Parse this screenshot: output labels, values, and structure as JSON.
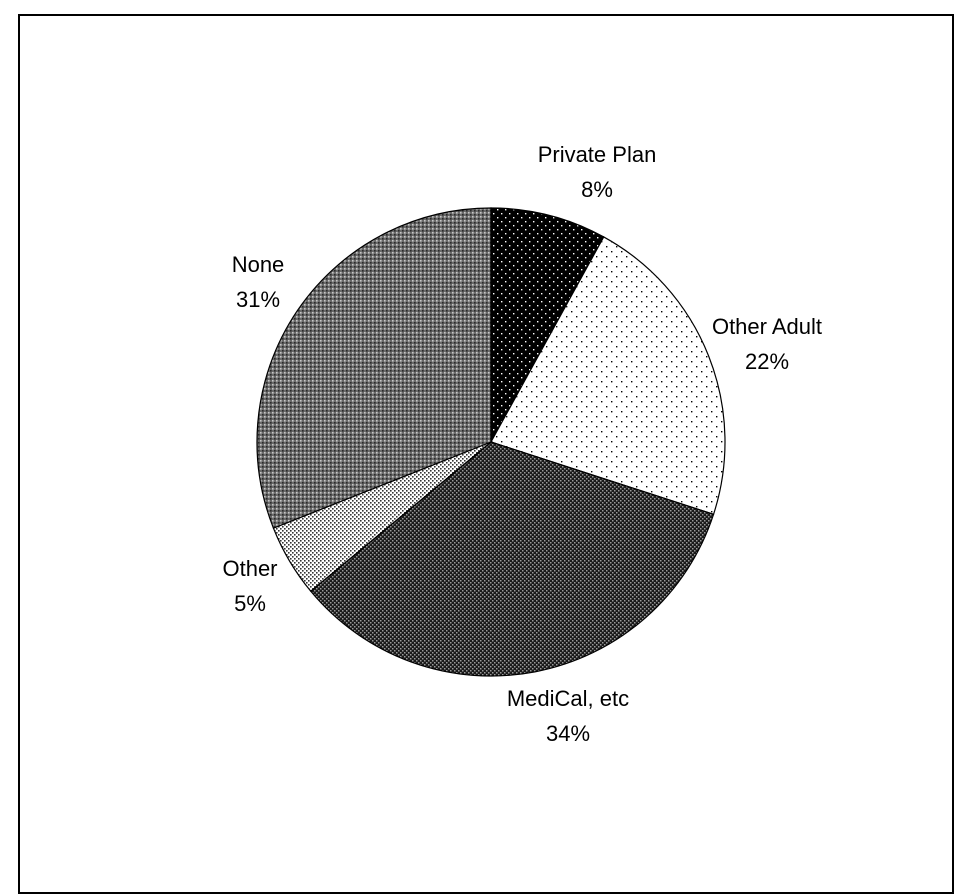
{
  "chart_data": {
    "type": "pie",
    "title": "",
    "start": "top",
    "direction": "clockwise",
    "legend": "none",
    "slices": [
      {
        "label": "Private Plan",
        "value": 8,
        "value_label": "8%",
        "pattern": "black-dots"
      },
      {
        "label": "Other Adult",
        "value": 22,
        "value_label": "22%",
        "pattern": "sparse-dots"
      },
      {
        "label": "MediCal, etc",
        "value": 34,
        "value_label": "34%",
        "pattern": "dark-check"
      },
      {
        "label": "Other",
        "value": 5,
        "value_label": "5%",
        "pattern": "fine-dots"
      },
      {
        "label": "None",
        "value": 31,
        "value_label": "31%",
        "pattern": "gray-check"
      }
    ]
  }
}
